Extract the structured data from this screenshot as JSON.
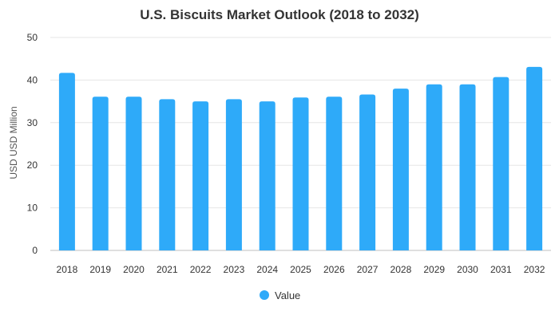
{
  "chart_data": {
    "type": "bar",
    "title": "U.S. Biscuits Market Outlook (2018 to 2032)",
    "xlabel": "",
    "ylabel": "USD USD Million",
    "categories": [
      "2018",
      "2019",
      "2020",
      "2021",
      "2022",
      "2023",
      "2024",
      "2025",
      "2026",
      "2027",
      "2028",
      "2029",
      "2030",
      "2031",
      "2032"
    ],
    "series": [
      {
        "name": "Value",
        "color": "#2eaaf9",
        "values": [
          41.7,
          36.1,
          36.1,
          35.5,
          35.0,
          35.5,
          35.0,
          35.9,
          36.1,
          36.6,
          38.0,
          39.0,
          39.0,
          40.7,
          43.1
        ]
      }
    ],
    "ylim": [
      0,
      50
    ],
    "yticks": [
      0,
      10,
      20,
      30,
      40,
      50
    ],
    "grid": true,
    "legend_position": "bottom-center"
  }
}
